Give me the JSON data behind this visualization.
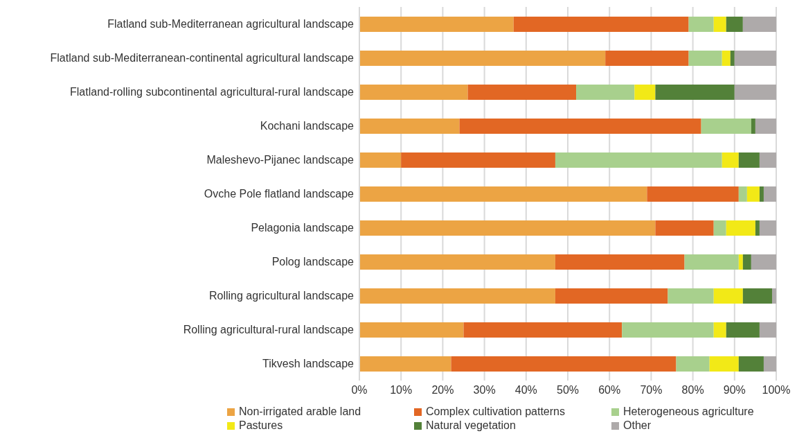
{
  "chart_data": {
    "type": "bar",
    "orientation": "horizontal",
    "stacked": true,
    "categories": [
      "Flatland sub-Mediterranean agricultural landscape",
      "Flatland sub-Mediterranean-continental agricultural landscape",
      "Flatland-rolling subcontinental agricultural-rural landscape",
      "Kochani landscape",
      "Maleshevo-Pijanec landscape",
      "Ovche Pole flatland landscape",
      "Pelagonia landscape",
      "Polog landscape",
      "Rolling agricultural landscape",
      "Rolling agricultural-rural landscape",
      "Tikvesh landscape"
    ],
    "series": [
      {
        "name": "Non-irrigated arable land",
        "color": "#eca444",
        "values": [
          37,
          59,
          26,
          24,
          10,
          69,
          71,
          47,
          47,
          25,
          22
        ]
      },
      {
        "name": "Complex cultivation patterns",
        "color": "#e26724",
        "values": [
          42,
          20,
          26,
          58,
          37,
          22,
          14,
          31,
          27,
          38,
          54
        ]
      },
      {
        "name": "Heterogeneous agriculture",
        "color": "#a8d08d",
        "values": [
          6,
          8,
          14,
          12,
          40,
          2,
          3,
          13,
          11,
          22,
          8
        ]
      },
      {
        "name": "Pastures",
        "color": "#f2e917",
        "values": [
          3,
          2,
          5,
          0,
          4,
          3,
          7,
          1,
          7,
          3,
          7
        ]
      },
      {
        "name": "Natural vegetation",
        "color": "#538139",
        "values": [
          4,
          1,
          19,
          1,
          5,
          1,
          1,
          2,
          7,
          8,
          6
        ]
      },
      {
        "name": "Other",
        "color": "#aeaaaa",
        "values": [
          8,
          10,
          10,
          5,
          4,
          3,
          4,
          6,
          1,
          4,
          3
        ]
      }
    ],
    "xlim": [
      0,
      100
    ],
    "xticks": [
      {
        "value": 0,
        "label": "0%"
      },
      {
        "value": 10,
        "label": "10%"
      },
      {
        "value": 20,
        "label": "20%"
      },
      {
        "value": 30,
        "label": "30%"
      },
      {
        "value": 40,
        "label": "40%"
      },
      {
        "value": 50,
        "label": "50%"
      },
      {
        "value": 60,
        "label": "60%"
      },
      {
        "value": 70,
        "label": "70%"
      },
      {
        "value": 80,
        "label": "80%"
      },
      {
        "value": 90,
        "label": "90%"
      },
      {
        "value": 100,
        "label": "100%"
      }
    ],
    "grid": "x",
    "legend": "bottom"
  }
}
